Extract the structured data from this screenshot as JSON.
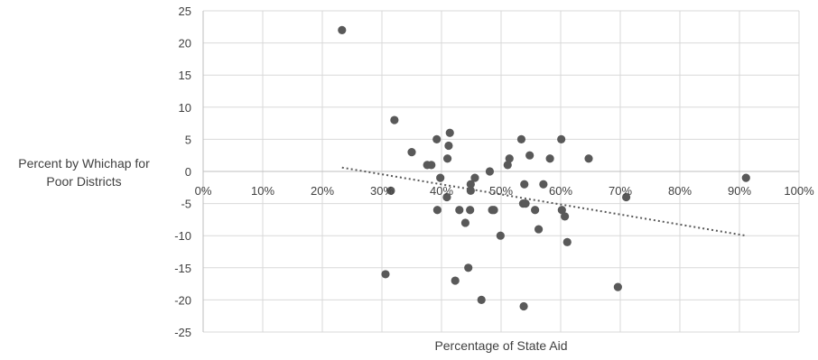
{
  "chart_data": {
    "type": "scatter",
    "title": "",
    "xlabel": "Percentage of State Aid",
    "ylabel": "Percent by Whichap for Poor Districts",
    "ylabel_lines": [
      "Percent by Whichap for",
      "Poor Districts"
    ],
    "xlim": [
      0,
      1
    ],
    "ylim": [
      -25,
      25
    ],
    "x_ticks": [
      0,
      0.1,
      0.2,
      0.3,
      0.4,
      0.5,
      0.6,
      0.7,
      0.8,
      0.9,
      1.0
    ],
    "x_tick_labels": [
      "0%",
      "10%",
      "20%",
      "30%",
      "40%",
      "50%",
      "60%",
      "70%",
      "80%",
      "90%",
      "100%"
    ],
    "y_ticks": [
      25,
      20,
      15,
      10,
      5,
      0,
      -5,
      -10,
      -15,
      -20,
      -25
    ],
    "y_tick_labels": [
      "25",
      "20",
      "15",
      "10",
      "5",
      "0",
      "-5",
      "-10",
      "-15",
      "-20",
      "-25"
    ],
    "grid": true,
    "colors": {
      "point": "#595959",
      "grid": "#d9d9d9",
      "trendline": "#595959"
    },
    "points": [
      {
        "x": 0.233,
        "y": 22
      },
      {
        "x": 0.321,
        "y": 8
      },
      {
        "x": 0.315,
        "y": -3
      },
      {
        "x": 0.306,
        "y": -16
      },
      {
        "x": 0.35,
        "y": 3
      },
      {
        "x": 0.376,
        "y": 1
      },
      {
        "x": 0.383,
        "y": 1
      },
      {
        "x": 0.392,
        "y": 5
      },
      {
        "x": 0.398,
        "y": -1
      },
      {
        "x": 0.393,
        "y": -6
      },
      {
        "x": 0.414,
        "y": 6
      },
      {
        "x": 0.412,
        "y": 4
      },
      {
        "x": 0.41,
        "y": 2
      },
      {
        "x": 0.409,
        "y": -4
      },
      {
        "x": 0.423,
        "y": -17
      },
      {
        "x": 0.43,
        "y": -6
      },
      {
        "x": 0.44,
        "y": -8
      },
      {
        "x": 0.445,
        "y": -15
      },
      {
        "x": 0.448,
        "y": -6
      },
      {
        "x": 0.449,
        "y": -2
      },
      {
        "x": 0.449,
        "y": -3
      },
      {
        "x": 0.456,
        "y": -1
      },
      {
        "x": 0.467,
        "y": -20
      },
      {
        "x": 0.481,
        "y": 0
      },
      {
        "x": 0.485,
        "y": -6
      },
      {
        "x": 0.488,
        "y": -6
      },
      {
        "x": 0.499,
        "y": -10
      },
      {
        "x": 0.511,
        "y": 1
      },
      {
        "x": 0.514,
        "y": 2
      },
      {
        "x": 0.534,
        "y": 5
      },
      {
        "x": 0.537,
        "y": -5
      },
      {
        "x": 0.539,
        "y": -2
      },
      {
        "x": 0.541,
        "y": -5
      },
      {
        "x": 0.538,
        "y": -21
      },
      {
        "x": 0.548,
        "y": 2.5
      },
      {
        "x": 0.557,
        "y": -6
      },
      {
        "x": 0.563,
        "y": -9
      },
      {
        "x": 0.571,
        "y": -2
      },
      {
        "x": 0.582,
        "y": 2
      },
      {
        "x": 0.601,
        "y": 5
      },
      {
        "x": 0.602,
        "y": -6
      },
      {
        "x": 0.607,
        "y": -7
      },
      {
        "x": 0.611,
        "y": -11
      },
      {
        "x": 0.647,
        "y": 2
      },
      {
        "x": 0.696,
        "y": -18
      },
      {
        "x": 0.71,
        "y": -4
      },
      {
        "x": 0.911,
        "y": -1
      }
    ],
    "trendline": {
      "style": "dotted",
      "x_start": 0.233,
      "y_start": 0.6,
      "x_end": 0.911,
      "y_end": -10
    }
  }
}
